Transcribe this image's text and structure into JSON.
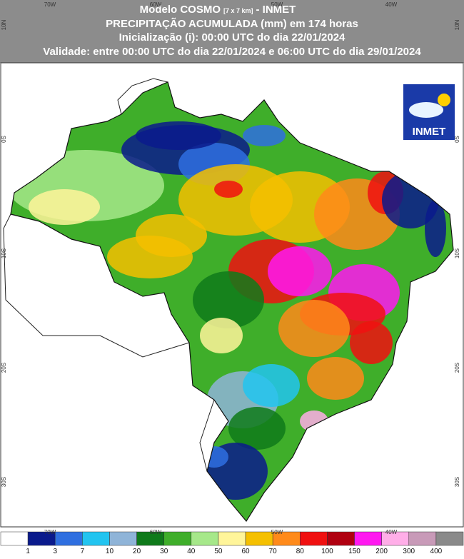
{
  "header": {
    "model": "Modelo COSMO",
    "resolution": "[7 x 7 km]",
    "source": "- INMET",
    "title": "PRECIPITAÇÃO ACUMULADA (mm) em 174 horas",
    "init": "Inicialização (i): 00:00 UTC do dia 22/01/2024",
    "validity": "Validade: entre 00:00 UTC do dia 22/01/2024 e 06:00 UTC do dia 29/01/2024"
  },
  "axes": {
    "lon_labels": [
      "70W",
      "60W",
      "50W",
      "40W"
    ],
    "lat_labels": [
      "10N",
      "0S",
      "10S",
      "20S",
      "30S"
    ]
  },
  "logo": {
    "text": "INMET"
  },
  "legend": {
    "thresholds": [
      1,
      3,
      7,
      10,
      20,
      30,
      40,
      50,
      60,
      70,
      80,
      100,
      150,
      200,
      300,
      400
    ],
    "colors": [
      "#ffffff",
      "#0a1a8c",
      "#2f6fe0",
      "#22c4f0",
      "#8fb4d8",
      "#0f7a1a",
      "#3fae2a",
      "#a6e88a",
      "#fff59a",
      "#f5c000",
      "#ff8a1a",
      "#f01010",
      "#b00010",
      "#ff18f0",
      "#ffaee8",
      "#c89ab8",
      "#8a8a8a"
    ]
  }
}
